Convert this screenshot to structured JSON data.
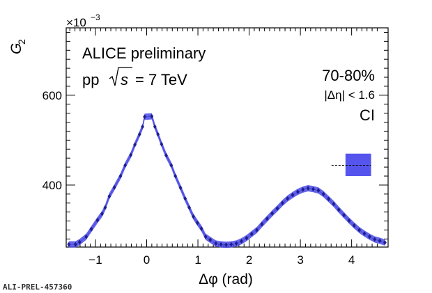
{
  "chart_data": {
    "type": "scatter",
    "x_label": "Δφ (rad)",
    "y_label": "G",
    "y_label_sub": "2",
    "y_multiplier": "×10",
    "y_multiplier_exp": "−3",
    "xlim": [
      -1.571,
      4.712
    ],
    "ylim": [
      262,
      750
    ],
    "x_ticks": [
      -1,
      0,
      1,
      2,
      3,
      4
    ],
    "x_tick_labels": [
      "−1",
      "0",
      "1",
      "2",
      "3",
      "4"
    ],
    "y_ticks": [
      400,
      600
    ],
    "y_tick_labels": [
      "400",
      "600"
    ],
    "annotations": {
      "experiment": "ALICE preliminary",
      "system_prefix": "pp",
      "system_suffix": "= 7 TeV",
      "sqrt_s": "s",
      "centrality": "70-80%",
      "eta_cut": "|Δη| < 1.6",
      "label": "CI"
    },
    "systematic_box": {
      "x_range": [
        3.88,
        4.38
      ],
      "y_range": [
        420,
        470
      ],
      "center": 444,
      "color": "#5555ee"
    },
    "series": [
      {
        "color": "#1e1e8c",
        "band_color": "#4a4ae6",
        "points": [
          [
            -1.52,
            268
          ],
          [
            -1.39,
            268
          ],
          [
            -1.31,
            273
          ],
          [
            -1.18,
            285
          ],
          [
            -1.08,
            302
          ],
          [
            -0.96,
            322
          ],
          [
            -0.87,
            336
          ],
          [
            -0.81,
            350
          ],
          [
            -0.73,
            375
          ],
          [
            -0.63,
            395
          ],
          [
            -0.51,
            420
          ],
          [
            -0.42,
            444
          ],
          [
            -0.31,
            467
          ],
          [
            -0.23,
            490
          ],
          [
            -0.14,
            513
          ],
          [
            -0.08,
            530
          ],
          [
            -0.04,
            552
          ],
          [
            0.1,
            553
          ],
          [
            0.16,
            530
          ],
          [
            0.22,
            513
          ],
          [
            0.29,
            491
          ],
          [
            0.38,
            466
          ],
          [
            0.48,
            444
          ],
          [
            0.56,
            420
          ],
          [
            0.66,
            394
          ],
          [
            0.75,
            370
          ],
          [
            0.83,
            350
          ],
          [
            0.91,
            330
          ],
          [
            0.99,
            316
          ],
          [
            1.07,
            303
          ],
          [
            1.15,
            285
          ],
          [
            1.24,
            278
          ],
          [
            1.35,
            270
          ],
          [
            1.45,
            268
          ],
          [
            1.55,
            267
          ],
          [
            1.65,
            268
          ],
          [
            1.75,
            270
          ],
          [
            1.85,
            275
          ],
          [
            1.95,
            282
          ],
          [
            2.05,
            291
          ],
          [
            2.15,
            300
          ],
          [
            2.25,
            313
          ],
          [
            2.35,
            325
          ],
          [
            2.45,
            337
          ],
          [
            2.55,
            348
          ],
          [
            2.65,
            360
          ],
          [
            2.75,
            370
          ],
          [
            2.85,
            378
          ],
          [
            2.95,
            385
          ],
          [
            3.05,
            390
          ],
          [
            3.15,
            393
          ],
          [
            3.25,
            391
          ],
          [
            3.35,
            388
          ],
          [
            3.45,
            380
          ],
          [
            3.55,
            369
          ],
          [
            3.65,
            358
          ],
          [
            3.75,
            345
          ],
          [
            3.85,
            333
          ],
          [
            3.95,
            321
          ],
          [
            4.05,
            310
          ],
          [
            4.15,
            300
          ],
          [
            4.25,
            292
          ],
          [
            4.35,
            285
          ],
          [
            4.45,
            279
          ],
          [
            4.55,
            276
          ],
          [
            4.65,
            272
          ]
        ]
      }
    ]
  },
  "watermark": "ALI-PREL-457360"
}
